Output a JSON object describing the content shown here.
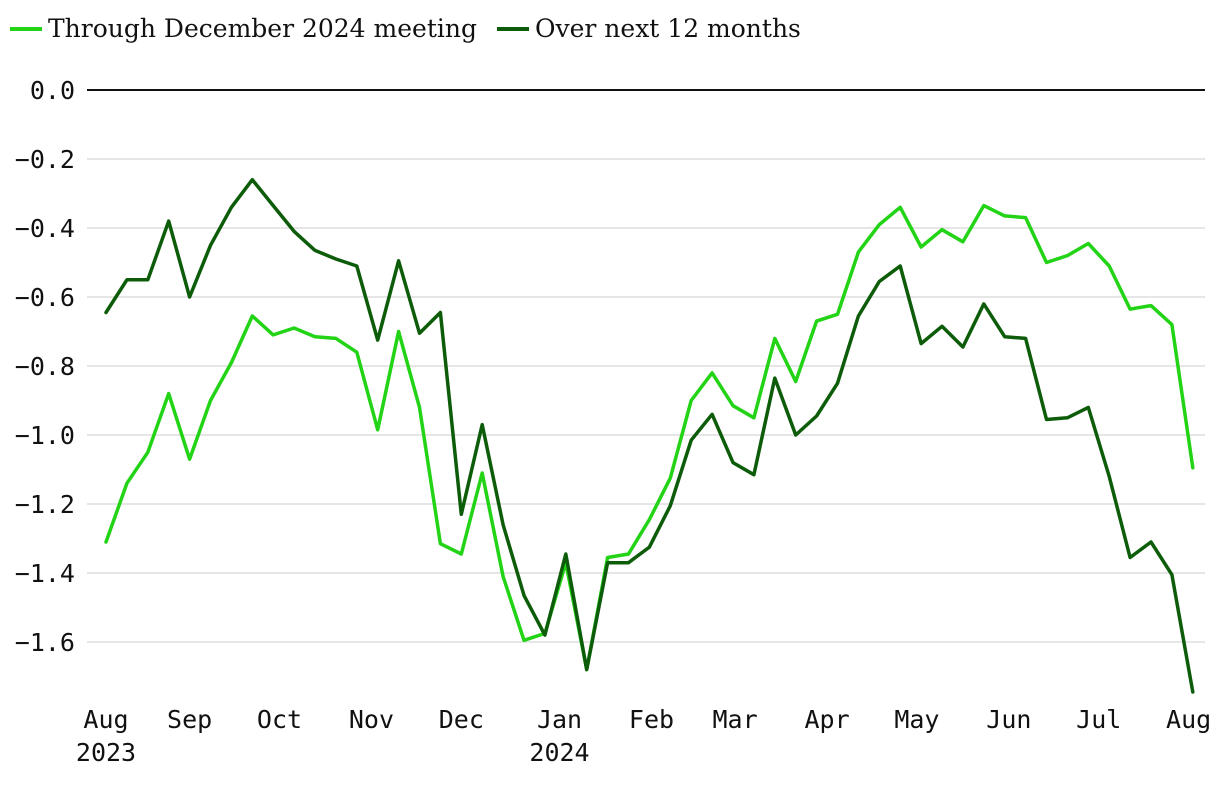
{
  "chart_data": {
    "type": "line",
    "title": "",
    "xlabel": "",
    "ylabel": "",
    "ylim": [
      -1.75,
      0.0
    ],
    "yticks": [
      0.0,
      -0.2,
      -0.4,
      -0.6,
      -0.8,
      -1.0,
      -1.2,
      -1.4,
      -1.6
    ],
    "ytick_labels": [
      "0.0",
      "−0.2",
      "−0.4",
      "−0.6",
      "−0.8",
      "−1.0",
      "−1.2",
      "−1.4",
      "−1.6"
    ],
    "x_index_range": [
      0,
      52
    ],
    "xticks": [
      {
        "label": "Aug",
        "sublabel": "2023",
        "index": 0
      },
      {
        "label": "Sep",
        "sublabel": "",
        "index": 4
      },
      {
        "label": "Oct",
        "sublabel": "",
        "index": 8.3
      },
      {
        "label": "Nov",
        "sublabel": "",
        "index": 12.7
      },
      {
        "label": "Dec",
        "sublabel": "",
        "index": 17
      },
      {
        "label": "Jan",
        "sublabel": "2024",
        "index": 21.7
      },
      {
        "label": "Feb",
        "sublabel": "",
        "index": 26.1
      },
      {
        "label": "Mar",
        "sublabel": "",
        "index": 30.1
      },
      {
        "label": "Apr",
        "sublabel": "",
        "index": 34.5
      },
      {
        "label": "May",
        "sublabel": "",
        "index": 38.8
      },
      {
        "label": "Jun",
        "sublabel": "",
        "index": 43.2
      },
      {
        "label": "Jul",
        "sublabel": "",
        "index": 47.5
      },
      {
        "label": "Aug",
        "sublabel": "",
        "index": 51.8
      }
    ],
    "series": [
      {
        "name": "Through December 2024 meeting",
        "color": "#22d316",
        "values": [
          -1.31,
          -1.14,
          -1.05,
          -0.88,
          -1.07,
          -0.9,
          -0.79,
          -0.655,
          -0.71,
          -0.69,
          -0.715,
          -0.72,
          -0.76,
          -0.985,
          -0.7,
          -0.92,
          -1.315,
          -1.345,
          -1.11,
          -1.41,
          -1.595,
          -1.575,
          -1.37,
          -1.68,
          -1.355,
          -1.345,
          -1.245,
          -1.125,
          -0.9,
          -0.82,
          -0.915,
          -0.95,
          -0.72,
          -0.845,
          -0.67,
          -0.65,
          -0.47,
          -0.39,
          -0.34,
          -0.455,
          -0.405,
          -0.44,
          -0.335,
          -0.365,
          -0.37,
          -0.5,
          -0.48,
          -0.445,
          -0.51,
          -0.635,
          -0.625,
          -0.68,
          -1.095
        ]
      },
      {
        "name": "Over next 12 months",
        "color": "#0d5c0a",
        "values": [
          -0.645,
          -0.55,
          -0.55,
          -0.38,
          -0.6,
          -0.45,
          -0.34,
          -0.26,
          -0.335,
          -0.41,
          -0.465,
          -0.49,
          -0.51,
          -0.725,
          -0.495,
          -0.705,
          -0.645,
          -1.23,
          -0.97,
          -1.26,
          -1.465,
          -1.58,
          -1.345,
          -1.68,
          -1.37,
          -1.37,
          -1.325,
          -1.205,
          -1.015,
          -0.94,
          -1.08,
          -1.115,
          -0.835,
          -1.0,
          -0.945,
          -0.85,
          -0.655,
          -0.555,
          -0.51,
          -0.735,
          -0.685,
          -0.745,
          -0.62,
          -0.715,
          -0.72,
          -0.955,
          -0.95,
          -0.92,
          -1.12,
          -1.355,
          -1.31,
          -1.405,
          -1.745
        ]
      }
    ]
  }
}
